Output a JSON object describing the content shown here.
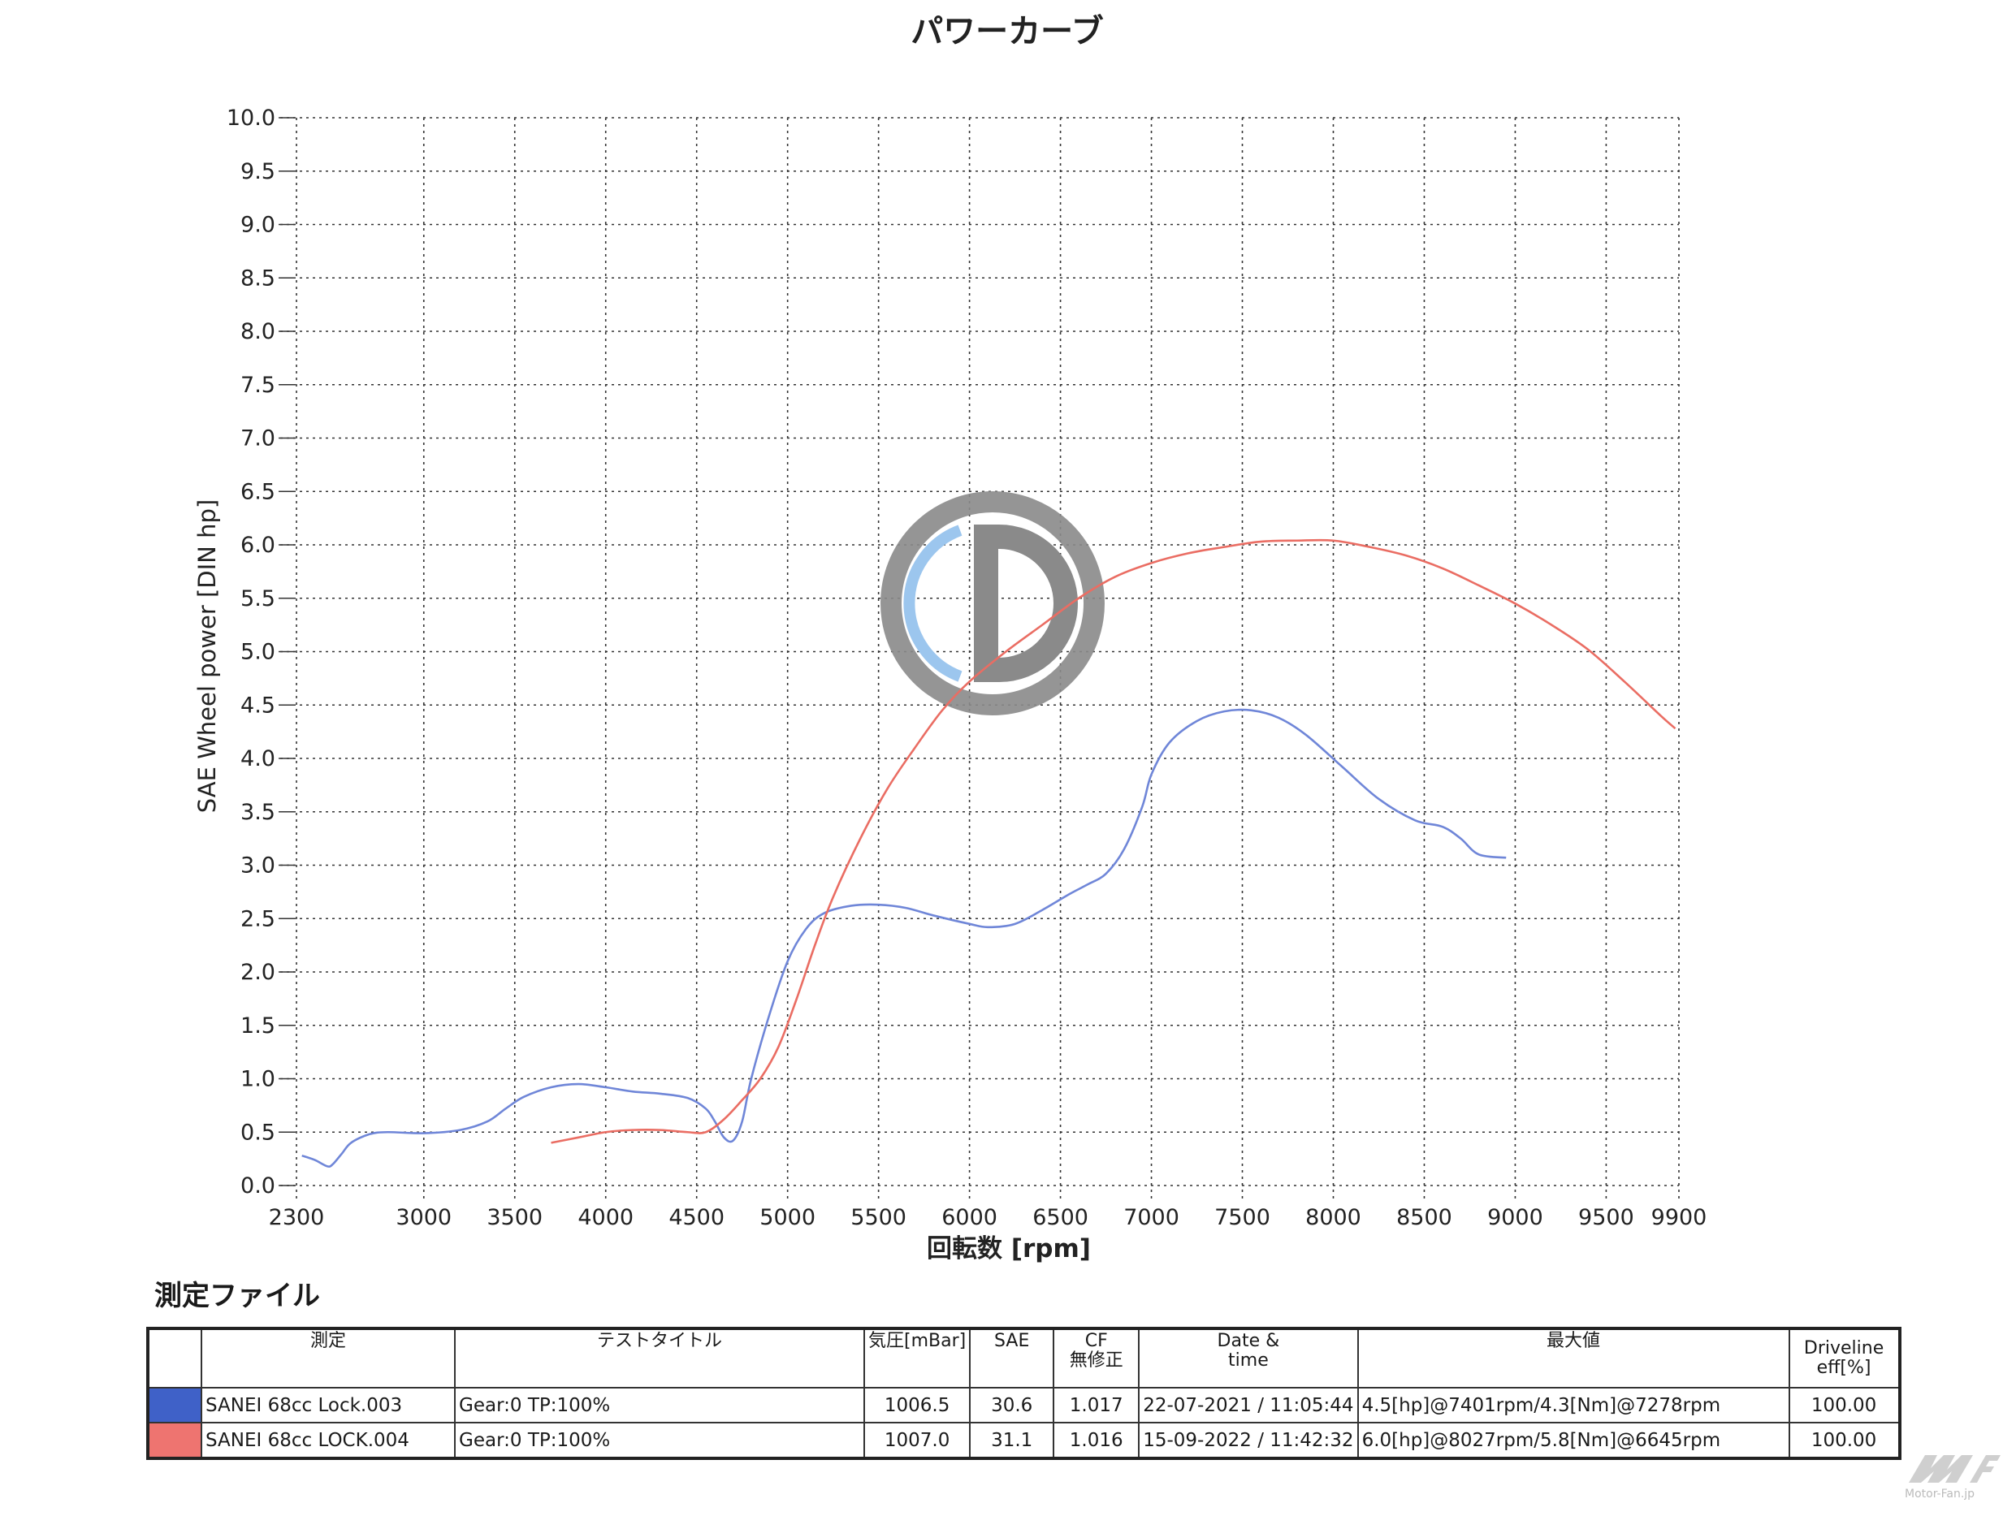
{
  "chart_data": {
    "type": "line",
    "title": "パワーカーブ",
    "xlabel": "回転数 [rpm]",
    "ylabel": "SAE Wheel power [DIN hp]",
    "xlim": [
      2300,
      9900
    ],
    "ylim": [
      0.0,
      10.0
    ],
    "x_ticks": [
      2300,
      3000,
      3500,
      4000,
      4500,
      5000,
      5500,
      6000,
      6500,
      7000,
      7500,
      8000,
      8500,
      9000,
      9500,
      9900
    ],
    "x_tick_labels": [
      "2300",
      "3000",
      "3500",
      "4000",
      "4500",
      "5000",
      "5500",
      "6000",
      "6500",
      "7000",
      "7500",
      "8000",
      "8500",
      "9000",
      "9500",
      "9900"
    ],
    "y_ticks": [
      0.0,
      0.5,
      1.0,
      1.5,
      2.0,
      2.5,
      3.0,
      3.5,
      4.0,
      4.5,
      5.0,
      5.5,
      6.0,
      6.5,
      7.0,
      7.5,
      8.0,
      8.5,
      9.0,
      9.5,
      10.0
    ],
    "y_tick_labels": [
      "0.0",
      "0.5",
      "1.0",
      "1.5",
      "2.0",
      "2.5",
      "3.0",
      "3.5",
      "4.0",
      "4.5",
      "5.0",
      "5.5",
      "6.0",
      "6.5",
      "7.0",
      "7.5",
      "8.0",
      "8.5",
      "9.0",
      "9.5",
      "10.0"
    ],
    "grid": true,
    "series": [
      {
        "color": "#6f86d8",
        "x": [
          2330,
          2400,
          2470,
          2500,
          2550,
          2600,
          2700,
          2800,
          3000,
          3200,
          3350,
          3450,
          3550,
          3700,
          3850,
          4000,
          4150,
          4300,
          4450,
          4550,
          4600,
          4650,
          4700,
          4750,
          4800,
          4900,
          5000,
          5100,
          5200,
          5350,
          5500,
          5650,
          5800,
          6000,
          6100,
          6250,
          6400,
          6550,
          6650,
          6750,
          6850,
          6950,
          7000,
          7100,
          7250,
          7400,
          7550,
          7700,
          7850,
          8050,
          8250,
          8450,
          8600,
          8700,
          8800,
          8950
        ],
        "y": [
          0.28,
          0.24,
          0.18,
          0.2,
          0.3,
          0.4,
          0.48,
          0.5,
          0.49,
          0.52,
          0.6,
          0.72,
          0.83,
          0.92,
          0.95,
          0.92,
          0.88,
          0.86,
          0.82,
          0.72,
          0.6,
          0.45,
          0.42,
          0.6,
          1.0,
          1.6,
          2.1,
          2.4,
          2.55,
          2.62,
          2.63,
          2.6,
          2.53,
          2.45,
          2.42,
          2.45,
          2.58,
          2.73,
          2.82,
          2.92,
          3.15,
          3.55,
          3.85,
          4.15,
          4.35,
          4.44,
          4.45,
          4.38,
          4.22,
          3.92,
          3.62,
          3.42,
          3.36,
          3.25,
          3.1,
          3.07
        ]
      },
      {
        "color": "#ea6d63",
        "x": [
          3700,
          3850,
          4000,
          4150,
          4300,
          4450,
          4550,
          4650,
          4750,
          4850,
          4950,
          5050,
          5150,
          5250,
          5400,
          5550,
          5700,
          5850,
          6000,
          6200,
          6400,
          6600,
          6800,
          7000,
          7200,
          7400,
          7600,
          7800,
          8000,
          8200,
          8400,
          8600,
          8800,
          9000,
          9200,
          9400,
          9600,
          9800,
          9880
        ],
        "y": [
          0.4,
          0.45,
          0.5,
          0.52,
          0.52,
          0.5,
          0.5,
          0.62,
          0.8,
          1.0,
          1.3,
          1.75,
          2.25,
          2.7,
          3.25,
          3.72,
          4.1,
          4.45,
          4.72,
          5.0,
          5.25,
          5.5,
          5.7,
          5.83,
          5.92,
          5.98,
          6.03,
          6.04,
          6.04,
          5.98,
          5.9,
          5.78,
          5.62,
          5.45,
          5.25,
          5.02,
          4.72,
          4.4,
          4.28
        ]
      }
    ]
  },
  "watermark": {
    "letter": "D",
    "ring_color": "#8a8a8a",
    "accent_color": "#9cc6ee"
  },
  "section_title": "測定ファイル",
  "table": {
    "headers": {
      "name": "測定",
      "test_title": "テストタイトル",
      "pressure": "気圧[mBar]",
      "sae": "SAE",
      "cf_line1": "CF",
      "cf_line2": "無修正",
      "date_line1": "Date &",
      "date_line2": "time",
      "max": "最大値",
      "eff_line1": "Driveline",
      "eff_line2": "eff[%]"
    },
    "rows": [
      {
        "color": "#3f61c8",
        "name": "SANEI 68cc Lock.003",
        "test_title": "Gear:0 TP:100%",
        "pressure": "1006.5",
        "sae": "30.6",
        "cf": "1.017",
        "date": "22-07-2021 / 11:05:44",
        "max": "4.5[hp]@7401rpm/4.3[Nm]@7278rpm",
        "eff": "100.00"
      },
      {
        "color": "#ee7470",
        "name": "SANEI 68cc LOCK.004",
        "test_title": "Gear:0 TP:100%",
        "pressure": "1007.0",
        "sae": "31.1",
        "cf": "1.016",
        "date": "15-09-2022 / 11:42:32",
        "max": "6.0[hp]@8027rpm/5.8[Nm]@6645rpm",
        "eff": "100.00"
      }
    ]
  },
  "brand": {
    "text": "Motor-Fan.jp"
  }
}
